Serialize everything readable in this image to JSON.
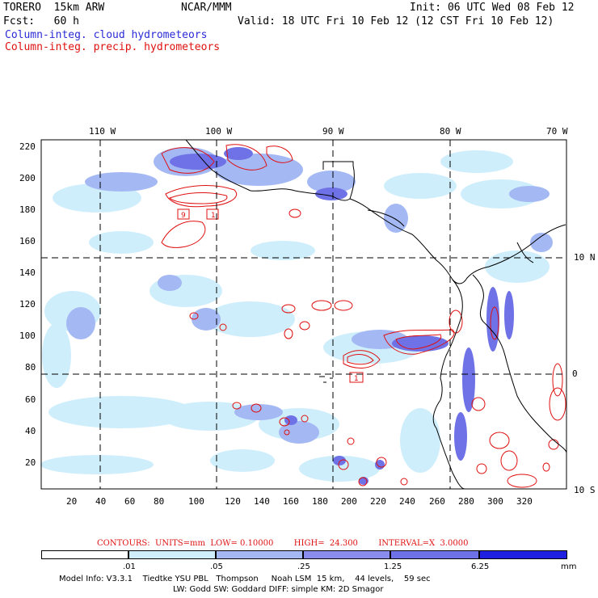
{
  "header": {
    "model_line": "TORERO  15km ARW",
    "org": "NCAR/MMM",
    "init": "Init: 06 UTC Wed 08 Feb 12",
    "fcst": "Fcst:   60 h",
    "valid": "Valid: 18 UTC Fri 10 Feb 12 (12 CST Fri 10 Feb 12)",
    "field_cloud": "Column-integ. cloud hydrometeors",
    "field_precip": "Column-integ. precip. hydrometeors"
  },
  "map": {
    "lon_labels": [
      "110 W",
      "100 W",
      "90 W",
      "80 W",
      "70 W"
    ],
    "lat_labels": [
      "10 N",
      "0",
      "10 S"
    ],
    "y_ticks": [
      "220",
      "200",
      "180",
      "160",
      "140",
      "120",
      "100",
      "80",
      "60",
      "40",
      "20"
    ],
    "x_ticks": [
      "20",
      "40",
      "60",
      "80",
      "100",
      "120",
      "140",
      "160",
      "180",
      "200",
      "220",
      "240",
      "260",
      "280",
      "300",
      "320"
    ],
    "contour_labels": [
      "9",
      "1",
      "1"
    ],
    "colors": {
      "cloud_light": "#cfeefc",
      "cloud_mid": "#a4b8f4",
      "cloud_dark": "#6e72e6",
      "precip_contour": "#e01010",
      "coast": "#000000"
    }
  },
  "contours_info": {
    "text": "CONTOURS:  UNITS=mm  LOW= 0.10000        HIGH=  24.300        INTERVAL=X  3.0000"
  },
  "legend": {
    "labels": [
      ".01",
      ".05",
      ".25",
      "1.25",
      "6.25"
    ],
    "unit": "mm",
    "colors": [
      "#ffffff",
      "#cfeefc",
      "#a4b8f4",
      "#8a8cee",
      "#6e72e6",
      "#4a4ae8",
      "#2020e0"
    ]
  },
  "footer": {
    "line1": "Model Info: V3.3.1    Tiedtke YSU PBL   Thompson     Noah LSM  15 km,    44 levels,    59 sec",
    "line2": "LW: Godd SW: Goddard DIFF: simple KM: 2D Smagor"
  }
}
